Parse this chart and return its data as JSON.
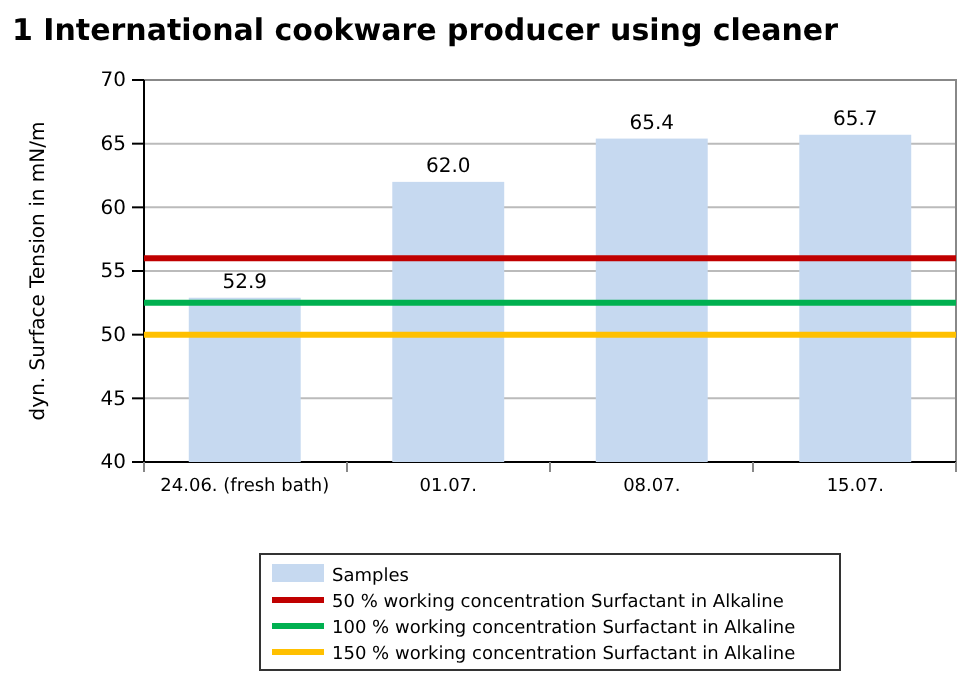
{
  "chart_data": {
    "type": "bar",
    "title": "1  International cookware producer using cleaner",
    "ylabel": "dyn. Surface Tension in mN/m",
    "categories": [
      "24.06. (fresh bath)",
      "01.07.",
      "08.07.",
      "15.07."
    ],
    "series": [
      {
        "name": "Samples",
        "color": "#c6d9f0",
        "values": [
          52.9,
          62.0,
          65.4,
          65.7
        ],
        "value_labels": [
          "52.9",
          "62.0",
          "65.4",
          "65.7"
        ]
      }
    ],
    "ylim": [
      40,
      70
    ],
    "yticks": [
      40,
      45,
      50,
      55,
      60,
      65,
      70
    ],
    "grid": "y",
    "legend": "bottom",
    "ref_lines": [
      {
        "axis": "y",
        "value": 56,
        "label": "50 % working concentration Surfactant in Alkaline",
        "color": "#c00000"
      },
      {
        "axis": "y",
        "value": 52.5,
        "label": "100 % working concentration Surfactant in Alkaline",
        "color": "#00b050"
      },
      {
        "axis": "y",
        "value": 50,
        "label": "150 % working concentration Surfactant in Alkaline",
        "color": "#ffc000"
      }
    ]
  }
}
